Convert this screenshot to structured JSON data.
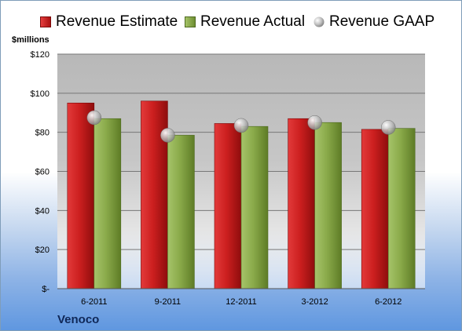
{
  "company": "Venoco",
  "unit_label": "$millions",
  "legend": [
    {
      "label": "Revenue Estimate",
      "icon": "red-square-swatch",
      "color": "#cc2222"
    },
    {
      "label": "Revenue Actual",
      "icon": "green-square-swatch",
      "color": "#8aaa4a"
    },
    {
      "label": "Revenue GAAP",
      "icon": "gray-sphere-marker",
      "color": "#b0b0b0"
    }
  ],
  "chart_data": {
    "type": "bar",
    "categories": [
      "6-2011",
      "9-2011",
      "12-2011",
      "3-2012",
      "6-2012"
    ],
    "series": [
      {
        "name": "Revenue Estimate",
        "type": "bar",
        "color": "#cc2222",
        "values": [
          95,
          96,
          84.5,
          87,
          81.5
        ]
      },
      {
        "name": "Revenue Actual",
        "type": "bar",
        "color": "#8aaa4a",
        "values": [
          87,
          78.5,
          83,
          85,
          82
        ]
      },
      {
        "name": "Revenue GAAP",
        "type": "marker",
        "color": "#b0b0b0",
        "values": [
          87.5,
          78.5,
          83.5,
          85,
          82.5
        ]
      }
    ],
    "ylabel": "$millions",
    "ylim": [
      0,
      120
    ],
    "yticks": [
      0,
      20,
      40,
      60,
      80,
      100,
      120
    ],
    "ytick_labels": [
      "$-",
      "$20",
      "$40",
      "$60",
      "$80",
      "$100",
      "$120"
    ],
    "grid": true,
    "legend_position": "top"
  }
}
